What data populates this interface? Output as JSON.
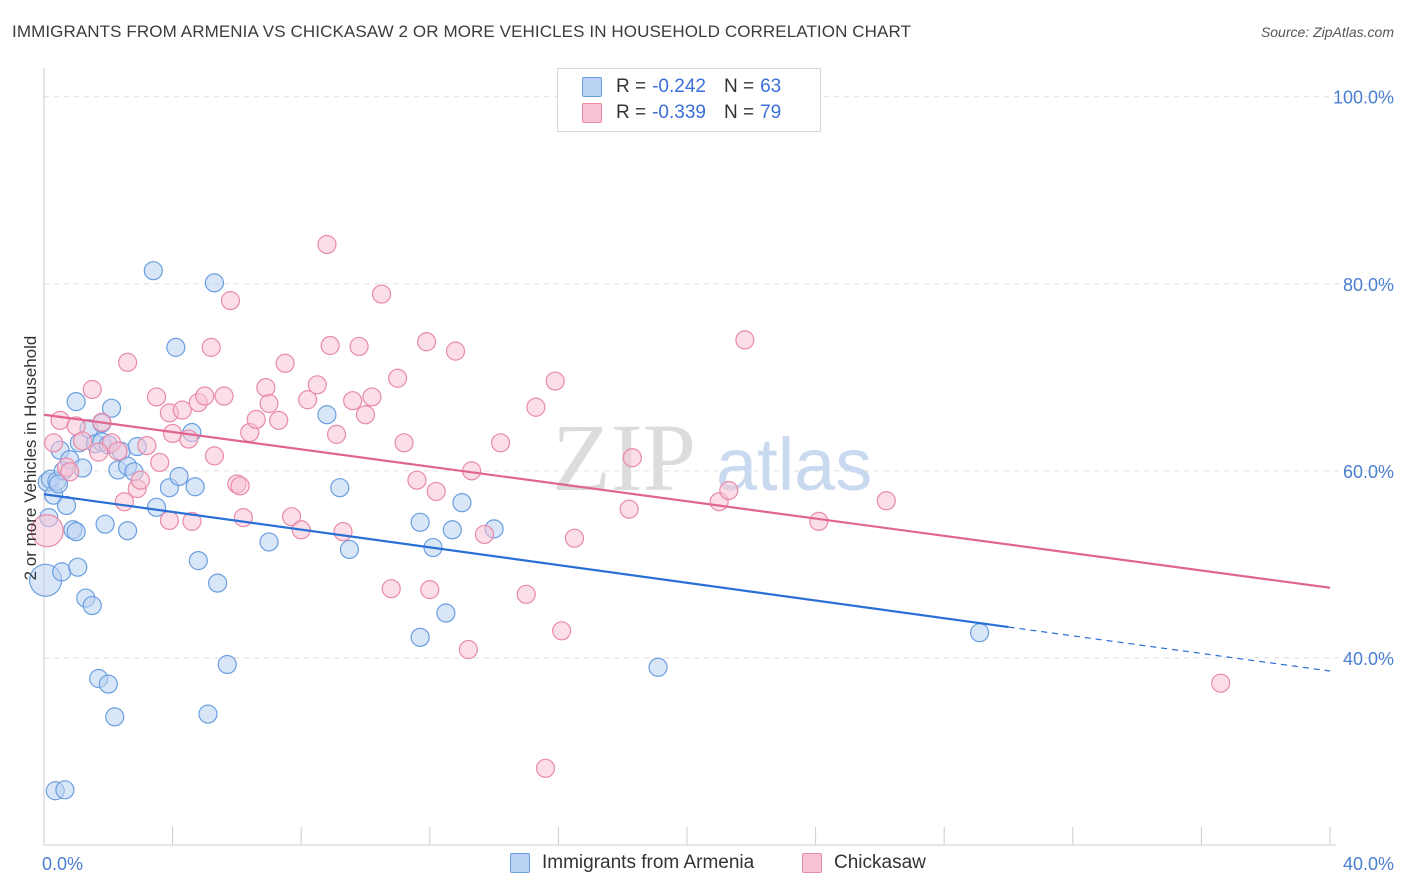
{
  "header": {
    "title": "IMMIGRANTS FROM ARMENIA VS CHICKASAW 2 OR MORE VEHICLES IN HOUSEHOLD CORRELATION CHART",
    "source": "Source: ZipAtlas.com"
  },
  "legend": {
    "rows": [
      {
        "r_label": "R =",
        "r_value": "-0.242",
        "n_label": "N =",
        "n_value": "63"
      },
      {
        "r_label": "R =",
        "r_value": "-0.339",
        "n_label": "N =",
        "n_value": "79"
      }
    ]
  },
  "watermark": {
    "zip": "ZIP",
    "atlas": "atlas"
  },
  "colors": {
    "armenia_fill": "#b9d2f3",
    "armenia_stroke": "#6a9ee0",
    "armenia_line": "#2a6fd6",
    "chickasaw_fill": "#f7c3d3",
    "chickasaw_stroke": "#e88aa8",
    "chickasaw_line": "#e0668f",
    "axis_text": "#4a7fd1",
    "grid": "#dddddd"
  },
  "chart_data": {
    "type": "scatter",
    "title": "IMMIGRANTS FROM ARMENIA VS CHICKASAW 2 OR MORE VEHICLES IN HOUSEHOLD CORRELATION CHART",
    "xlabel": "",
    "ylabel": "2 or more Vehicles in Household",
    "xlim": [
      0,
      40
    ],
    "ylim": [
      20,
      102
    ],
    "x_tick_labels": [
      "0.0%",
      "40.0%"
    ],
    "y_ticks": [
      40,
      60,
      80,
      100
    ],
    "y_tick_labels": [
      "40.0%",
      "60.0%",
      "80.0%",
      "100.0%"
    ],
    "grid": true,
    "series": [
      {
        "name": "Immigrants from Armenia",
        "trend": {
          "x0": 0,
          "y0": 57.5,
          "x1": 30,
          "y1": 43.3,
          "dash_to_x": 40,
          "dash_to_y": 38.6
        },
        "points": [
          [
            0.1,
            58.8
          ],
          [
            0.2,
            59.1
          ],
          [
            0.3,
            57.4
          ],
          [
            0.4,
            58.9
          ],
          [
            0.5,
            62.2
          ],
          [
            0.6,
            60.0
          ],
          [
            0.7,
            56.3
          ],
          [
            0.8,
            61.2
          ],
          [
            0.9,
            53.7
          ],
          [
            1.0,
            53.5
          ],
          [
            1.0,
            67.4
          ],
          [
            1.1,
            63.0
          ],
          [
            1.2,
            60.3
          ],
          [
            1.3,
            46.4
          ],
          [
            1.4,
            64.5
          ],
          [
            1.5,
            45.6
          ],
          [
            1.6,
            62.9
          ],
          [
            1.7,
            37.8
          ],
          [
            1.8,
            63.1
          ],
          [
            1.8,
            65.1
          ],
          [
            1.9,
            54.3
          ],
          [
            2.0,
            37.2
          ],
          [
            2.1,
            66.7
          ],
          [
            2.2,
            33.7
          ],
          [
            2.3,
            60.1
          ],
          [
            2.4,
            62.1
          ],
          [
            2.6,
            60.5
          ],
          [
            2.6,
            53.6
          ],
          [
            2.8,
            59.9
          ],
          [
            2.9,
            62.6
          ],
          [
            3.4,
            81.4
          ],
          [
            3.5,
            56.1
          ],
          [
            3.9,
            58.2
          ],
          [
            4.1,
            73.2
          ],
          [
            4.2,
            59.4
          ],
          [
            4.6,
            64.1
          ],
          [
            4.7,
            58.3
          ],
          [
            4.8,
            50.4
          ],
          [
            5.1,
            34.0
          ],
          [
            5.3,
            80.1
          ],
          [
            5.4,
            48.0
          ],
          [
            5.7,
            39.3
          ],
          [
            7.0,
            52.4
          ],
          [
            8.8,
            66.0
          ],
          [
            9.2,
            58.2
          ],
          [
            9.5,
            51.6
          ],
          [
            11.7,
            42.2
          ],
          [
            11.7,
            54.5
          ],
          [
            12.1,
            51.8
          ],
          [
            12.5,
            44.8
          ],
          [
            12.7,
            53.7
          ],
          [
            13.0,
            56.6
          ],
          [
            14.0,
            53.8
          ],
          [
            19.1,
            39.0
          ],
          [
            29.1,
            42.7
          ],
          [
            0.05,
            48.3
          ],
          [
            0.15,
            55.0
          ],
          [
            0.55,
            49.2
          ],
          [
            1.05,
            49.7
          ],
          [
            0.35,
            25.8
          ],
          [
            0.65,
            25.9
          ],
          [
            2.0,
            62.8
          ],
          [
            0.45,
            58.6
          ]
        ]
      },
      {
        "name": "Chickasaw",
        "trend": {
          "x0": 0,
          "y0": 66.0,
          "x1": 40,
          "y1": 47.5
        },
        "points": [
          [
            0.1,
            53.6
          ],
          [
            0.3,
            63.0
          ],
          [
            0.5,
            65.4
          ],
          [
            0.7,
            60.4
          ],
          [
            0.8,
            59.9
          ],
          [
            1.0,
            64.8
          ],
          [
            1.2,
            63.2
          ],
          [
            1.5,
            68.7
          ],
          [
            1.8,
            65.2
          ],
          [
            2.1,
            63.0
          ],
          [
            2.3,
            62.1
          ],
          [
            2.5,
            56.7
          ],
          [
            2.6,
            71.6
          ],
          [
            2.9,
            58.1
          ],
          [
            3.0,
            59.0
          ],
          [
            3.2,
            62.7
          ],
          [
            3.5,
            67.9
          ],
          [
            3.6,
            60.9
          ],
          [
            3.9,
            66.2
          ],
          [
            3.9,
            54.7
          ],
          [
            4.3,
            66.5
          ],
          [
            4.5,
            63.4
          ],
          [
            4.6,
            54.6
          ],
          [
            4.8,
            67.3
          ],
          [
            5.0,
            68.0
          ],
          [
            5.2,
            73.2
          ],
          [
            5.3,
            61.6
          ],
          [
            5.6,
            68.0
          ],
          [
            5.8,
            78.2
          ],
          [
            6.0,
            58.6
          ],
          [
            6.2,
            55.0
          ],
          [
            6.4,
            64.1
          ],
          [
            6.6,
            65.5
          ],
          [
            6.9,
            68.9
          ],
          [
            7.0,
            67.2
          ],
          [
            7.3,
            65.4
          ],
          [
            7.5,
            71.5
          ],
          [
            7.7,
            55.1
          ],
          [
            8.0,
            53.7
          ],
          [
            8.2,
            67.6
          ],
          [
            8.5,
            69.2
          ],
          [
            8.8,
            84.2
          ],
          [
            8.9,
            73.4
          ],
          [
            9.1,
            63.9
          ],
          [
            9.3,
            53.5
          ],
          [
            9.6,
            67.5
          ],
          [
            9.8,
            73.3
          ],
          [
            10.2,
            67.9
          ],
          [
            10.5,
            78.9
          ],
          [
            10.8,
            47.4
          ],
          [
            11.0,
            69.9
          ],
          [
            11.2,
            63.0
          ],
          [
            11.6,
            59.0
          ],
          [
            11.9,
            73.8
          ],
          [
            12.0,
            47.3
          ],
          [
            12.2,
            57.8
          ],
          [
            12.8,
            72.8
          ],
          [
            13.2,
            40.9
          ],
          [
            13.3,
            60.0
          ],
          [
            13.7,
            53.2
          ],
          [
            14.2,
            63.0
          ],
          [
            15.0,
            46.8
          ],
          [
            15.3,
            66.8
          ],
          [
            15.6,
            28.2
          ],
          [
            15.9,
            69.6
          ],
          [
            16.1,
            42.9
          ],
          [
            16.5,
            52.8
          ],
          [
            18.2,
            55.9
          ],
          [
            18.3,
            61.4
          ],
          [
            21.0,
            56.7
          ],
          [
            21.3,
            57.9
          ],
          [
            21.8,
            74.0
          ],
          [
            24.1,
            54.6
          ],
          [
            26.2,
            56.8
          ],
          [
            36.6,
            37.3
          ],
          [
            1.7,
            62.0
          ],
          [
            4.0,
            64.0
          ],
          [
            6.1,
            58.4
          ],
          [
            10.0,
            66.0
          ]
        ]
      }
    ]
  },
  "bottom_legend": {
    "items": [
      {
        "label": "Immigrants from Armenia"
      },
      {
        "label": "Chickasaw"
      }
    ]
  }
}
